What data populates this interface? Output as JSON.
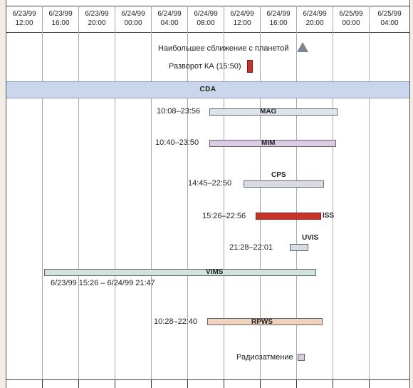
{
  "timeline": {
    "columns": [
      {
        "date": "6/23/99",
        "time": "12:00"
      },
      {
        "date": "6/23/99",
        "time": "16:00"
      },
      {
        "date": "6/23/99",
        "time": "20:00"
      },
      {
        "date": "6/24/99",
        "time": "00:00"
      },
      {
        "date": "6/24/99",
        "time": "04:00"
      },
      {
        "date": "6/24/99",
        "time": "08:00"
      },
      {
        "date": "6/24/99",
        "time": "12:00"
      },
      {
        "date": "6/24/99",
        "time": "16:00"
      },
      {
        "date": "6/24/99",
        "time": "20:00"
      },
      {
        "date": "6/25/99",
        "time": "00:00"
      },
      {
        "date": "6/25/99",
        "time": "04:00"
      }
    ]
  },
  "events": {
    "closest_approach_label": "Наибольшее сближение с планетой",
    "turn_label": "Разворот КА (15:50)",
    "cda_label": "CDA",
    "occultation_label": "Радиозатмение"
  },
  "instruments": [
    {
      "name": "MAG",
      "range": "10:08–23:56",
      "color": "#dde3ec"
    },
    {
      "name": "MIM",
      "range": "10:40–23:50",
      "color": "#dccbe6"
    },
    {
      "name": "CPS",
      "range": "14:45–22:50",
      "color": "#d7dbe6"
    },
    {
      "name": "ISS",
      "range": "15:26–22:56",
      "color": "#c8332b"
    },
    {
      "name": "UVIS",
      "range": "21:28–22:01",
      "color": "#d7dbe6"
    },
    {
      "name": "VIMS",
      "range": "6/23/99 15:26 – 6/24/99 21:47",
      "color": "#cfe5da"
    },
    {
      "name": "RPWS",
      "range": "10:28–22:40",
      "color": "#f1d2bf"
    }
  ],
  "colors": {
    "turn_marker": "#c8332b",
    "occultation_marker": "#d7cbe0",
    "approach_marker": "#7d8590",
    "cda_band": "#c9d6ec"
  }
}
